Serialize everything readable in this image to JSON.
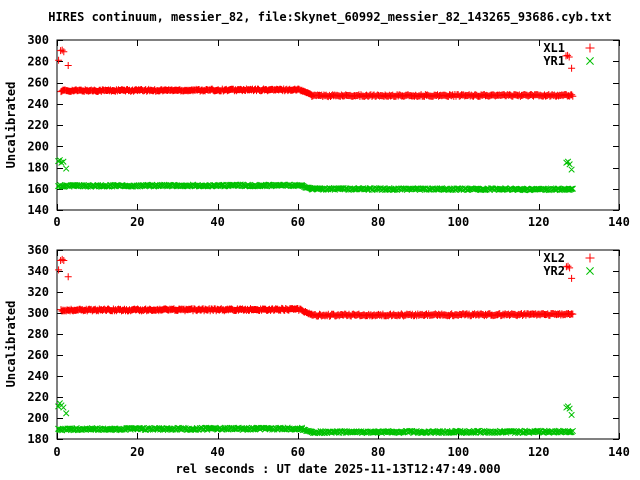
{
  "window": {
    "background": "#ffffff",
    "axis_color": "#000000"
  },
  "title": "HIRES continuum, messier_82, file:Skynet_60992_messier_82_143265_93686.cyb.txt",
  "xlabel": "rel seconds : UT date 2025-11-13T12:47:49.000",
  "chart_data": [
    {
      "type": "scatter",
      "panel": "top",
      "ylabel": "Uncalibrated",
      "xlim": [
        0,
        140
      ],
      "ylim": [
        140,
        300
      ],
      "xticks": [
        0,
        20,
        40,
        60,
        80,
        100,
        120,
        140
      ],
      "yticks": [
        140,
        160,
        180,
        200,
        220,
        240,
        260,
        280,
        300
      ],
      "grid": false,
      "legend_position": "top-right-inside",
      "series": [
        {
          "name": "XL1",
          "marker": "plus",
          "color": "#ff0000",
          "segments": [
            {
              "x0": 1,
              "x1": 61,
              "y0": 252.3,
              "y1": 253.2,
              "n": 240,
              "jitter": 0.9
            },
            {
              "x0": 61,
              "x1": 63.5,
              "y0": 252.4,
              "y1": 248.0,
              "n": 12,
              "jitter": 0.5
            },
            {
              "x0": 63.5,
              "x1": 128.5,
              "y0": 247.6,
              "y1": 247.9,
              "n": 240,
              "jitter": 0.9
            }
          ],
          "outliers": [
            [
              0.4,
              281
            ],
            [
              0.9,
              290
            ],
            [
              1.3,
              290.5
            ],
            [
              1.7,
              289
            ],
            [
              2.8,
              276
            ],
            [
              126.8,
              285
            ],
            [
              127.2,
              285.5
            ],
            [
              127.6,
              284
            ],
            [
              128.2,
              273.5
            ]
          ]
        },
        {
          "name": "YR1",
          "marker": "cross",
          "color": "#00c000",
          "segments": [
            {
              "x0": 0.3,
              "x1": 61,
              "y0": 162.7,
              "y1": 163.2,
              "n": 240,
              "jitter": 0.8
            },
            {
              "x0": 61,
              "x1": 63.5,
              "y0": 162.5,
              "y1": 160.0,
              "n": 10,
              "jitter": 0.5
            },
            {
              "x0": 63.5,
              "x1": 128.5,
              "y0": 159.8,
              "y1": 159.5,
              "n": 240,
              "jitter": 0.8
            }
          ],
          "outliers": [
            [
              0.3,
              186
            ],
            [
              0.7,
              187
            ],
            [
              1.1,
              184.5
            ],
            [
              1.6,
              185.5
            ],
            [
              2.3,
              179
            ],
            [
              126.9,
              184.5
            ],
            [
              127.3,
              185.5
            ],
            [
              127.7,
              183
            ],
            [
              128.2,
              178
            ]
          ]
        }
      ]
    },
    {
      "type": "scatter",
      "panel": "bottom",
      "ylabel": "Uncalibrated",
      "xlim": [
        0,
        140
      ],
      "ylim": [
        180,
        360
      ],
      "xticks": [
        0,
        20,
        40,
        60,
        80,
        100,
        120,
        140
      ],
      "yticks": [
        180,
        200,
        220,
        240,
        260,
        280,
        300,
        320,
        340,
        360
      ],
      "grid": false,
      "legend_position": "top-right-inside",
      "series": [
        {
          "name": "XL2",
          "marker": "plus",
          "color": "#ff0000",
          "segments": [
            {
              "x0": 1,
              "x1": 61,
              "y0": 302.8,
              "y1": 303.4,
              "n": 240,
              "jitter": 1.0
            },
            {
              "x0": 61,
              "x1": 63.5,
              "y0": 302.6,
              "y1": 298.2,
              "n": 12,
              "jitter": 0.6
            },
            {
              "x0": 63.5,
              "x1": 128.5,
              "y0": 297.9,
              "y1": 298.6,
              "n": 240,
              "jitter": 1.0
            }
          ],
          "outliers": [
            [
              0.4,
              341
            ],
            [
              0.9,
              350
            ],
            [
              1.3,
              351
            ],
            [
              1.7,
              350
            ],
            [
              2.8,
              334.5
            ],
            [
              126.9,
              344
            ],
            [
              127.3,
              344.5
            ],
            [
              127.7,
              343
            ],
            [
              128.2,
              333
            ]
          ]
        },
        {
          "name": "YR2",
          "marker": "cross",
          "color": "#00c000",
          "segments": [
            {
              "x0": 0.3,
              "x1": 61,
              "y0": 189.3,
              "y1": 189.9,
              "n": 240,
              "jitter": 1.0
            },
            {
              "x0": 61,
              "x1": 63.5,
              "y0": 189.2,
              "y1": 186.8,
              "n": 10,
              "jitter": 0.5
            },
            {
              "x0": 63.5,
              "x1": 128.5,
              "y0": 186.6,
              "y1": 186.9,
              "n": 240,
              "jitter": 1.0
            }
          ],
          "outliers": [
            [
              0.3,
              211
            ],
            [
              0.7,
              214
            ],
            [
              1.1,
              212
            ],
            [
              1.6,
              210
            ],
            [
              2.3,
              204.5
            ],
            [
              126.9,
              210
            ],
            [
              127.3,
              211
            ],
            [
              127.7,
              209
            ],
            [
              128.2,
              203
            ]
          ]
        }
      ]
    }
  ]
}
